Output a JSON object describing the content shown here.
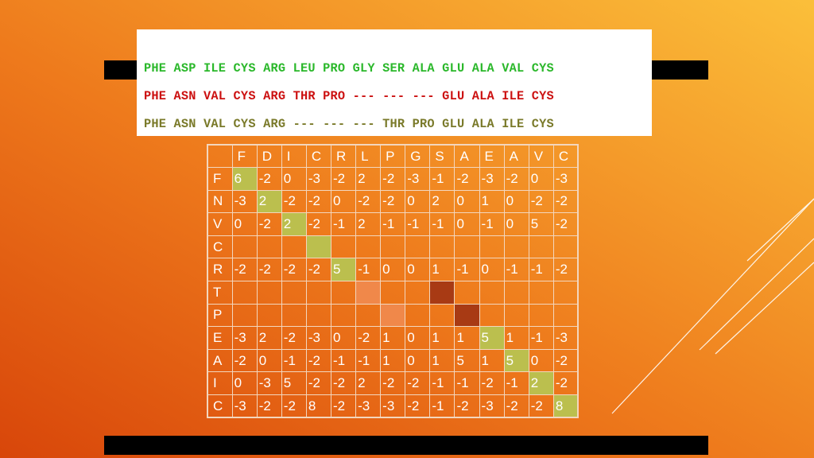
{
  "colors": {
    "seq1": "#2bb82b",
    "seq2": "#cc1111",
    "seq3": "#7a7a2a",
    "hl_green": "#bbbf4e",
    "hl_light": "#f0884a",
    "hl_dark": "#a83a14"
  },
  "sequences": [
    {
      "text": "PHE ASP ILE CYS ARG LEU PRO GLY SER ALA GLU ALA VAL CYS"
    },
    {
      "text": "PHE ASN VAL CYS ARG THR PRO --- --- --- GLU ALA ILE CYS"
    },
    {
      "text": "PHE ASN VAL CYS ARG --- --- --- THR PRO GLU ALA ILE CYS"
    }
  ],
  "matrix": {
    "col_headers": [
      "F",
      "D",
      "I",
      "C",
      "R",
      "L",
      "P",
      "G",
      "S",
      "A",
      "E",
      "A",
      "V",
      "C"
    ],
    "row_headers": [
      "F",
      "N",
      "V",
      "C",
      "R",
      "T",
      "P",
      "E",
      "A",
      "I",
      "C"
    ],
    "rows": [
      [
        "6",
        "-2",
        "0",
        "-3",
        "-2",
        "2",
        "-2",
        "-3",
        "-1",
        "-2",
        "-3",
        "-2",
        "0",
        "-3"
      ],
      [
        "-3",
        "2",
        "-2",
        "-2",
        "0",
        "-2",
        "-2",
        "0",
        "2",
        "0",
        "1",
        "0",
        "-2",
        "-2"
      ],
      [
        "0",
        "-2",
        "2",
        "-2",
        "-1",
        "2",
        "-1",
        "-1",
        "-1",
        "0",
        "-1",
        "0",
        "5",
        "-2"
      ],
      [
        "",
        "",
        "",
        "",
        "",
        "",
        "",
        "",
        "",
        "",
        "",
        "",
        "",
        ""
      ],
      [
        "-2",
        "-2",
        "-2",
        "-2",
        "5",
        "-1",
        "0",
        "0",
        "1",
        "-1",
        "0",
        "-1",
        "-1",
        "-2"
      ],
      [
        "",
        "",
        "",
        "",
        "",
        "",
        "",
        "",
        "",
        "",
        "",
        "",
        "",
        ""
      ],
      [
        "",
        "",
        "",
        "",
        "",
        "",
        "",
        "",
        "",
        "",
        "",
        "",
        "",
        ""
      ],
      [
        "-3",
        "2",
        "-2",
        "-3",
        "0",
        "-2",
        "1",
        "0",
        "1",
        "1",
        "5",
        "1",
        "-1",
        "-3"
      ],
      [
        "-2",
        "0",
        "-1",
        "-2",
        "-1",
        "-1",
        "1",
        "0",
        "1",
        "5",
        "1",
        "5",
        "0",
        "-2"
      ],
      [
        "0",
        "-3",
        "5",
        "-2",
        "-2",
        "2",
        "-2",
        "-2",
        "-1",
        "-1",
        "-2",
        "-1",
        "2",
        "-2"
      ],
      [
        "-3",
        "-2",
        "-2",
        "8",
        "-2",
        "-3",
        "-3",
        "-2",
        "-1",
        "-2",
        "-3",
        "-2",
        "-2",
        "8"
      ]
    ],
    "highlights": [
      {
        "row": 0,
        "col": 0,
        "kind": "green"
      },
      {
        "row": 1,
        "col": 1,
        "kind": "green"
      },
      {
        "row": 2,
        "col": 2,
        "kind": "green"
      },
      {
        "row": 3,
        "col": 3,
        "kind": "green"
      },
      {
        "row": 4,
        "col": 4,
        "kind": "green"
      },
      {
        "row": 5,
        "col": 5,
        "kind": "light"
      },
      {
        "row": 5,
        "col": 8,
        "kind": "dark"
      },
      {
        "row": 6,
        "col": 6,
        "kind": "light"
      },
      {
        "row": 6,
        "col": 9,
        "kind": "dark"
      },
      {
        "row": 7,
        "col": 10,
        "kind": "green"
      },
      {
        "row": 8,
        "col": 11,
        "kind": "green"
      },
      {
        "row": 9,
        "col": 12,
        "kind": "green"
      },
      {
        "row": 10,
        "col": 13,
        "kind": "green"
      }
    ]
  }
}
